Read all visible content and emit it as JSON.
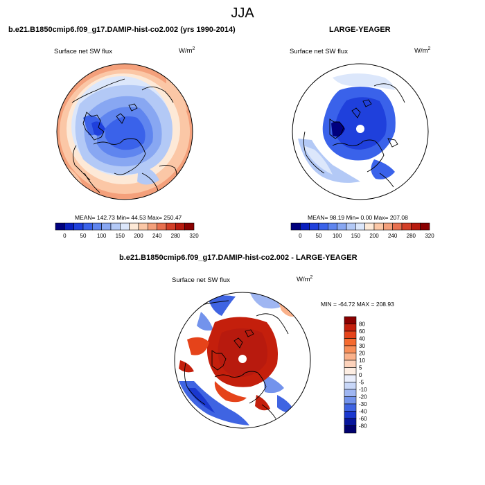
{
  "figure": {
    "title": "JJA"
  },
  "panels": [
    {
      "id": "model",
      "title": "b.e21.B1850cmip6.f09_g17.DAMIP-hist-co2.002 (yrs 1990-2014)",
      "left_label": "Surface net SW flux",
      "units_base": "W/m",
      "units_sup": "2",
      "stats": {
        "mean": "142.73",
        "min": "44.53",
        "max": "250.47"
      },
      "stats_text": "MEAN= 142.73  Min=  44.53  Max= 250.47"
    },
    {
      "id": "obs",
      "title": "LARGE-YEAGER",
      "left_label": "Surface net SW flux",
      "units_base": "W/m",
      "units_sup": "2",
      "stats": {
        "mean": "98.19",
        "min": "0.00",
        "max": "207.08"
      },
      "stats_text": "MEAN=  98.19  Min=   0.00  Max= 207.08"
    },
    {
      "id": "diff",
      "title": "b.e21.B1850cmip6.f09_g17.DAMIP-hist-co2.002 - LARGE-YEAGER",
      "left_label": "Surface net SW flux",
      "units_base": "W/m",
      "units_sup": "2",
      "stats": {
        "min": "-64.72",
        "max": "208.93"
      },
      "stats_text": "MIN = -64.72 MAX = 208.93"
    }
  ],
  "chart_data": [
    {
      "type": "heatmap",
      "title": "b.e21.B1850cmip6.f09_g17.DAMIP-hist-co2.002 (yrs 1990-2014)",
      "variable": "Surface net SW flux",
      "units": "W/m^2",
      "projection": "north polar stereographic",
      "mean": 142.73,
      "min": 44.53,
      "max": 250.47,
      "colorbar": {
        "orientation": "horizontal",
        "levels": [
          0,
          25,
          50,
          75,
          100,
          125,
          150,
          175,
          200,
          220,
          240,
          260,
          280,
          300,
          320
        ],
        "tick_labels": [
          "0",
          "50",
          "100",
          "150",
          "200",
          "240",
          "280",
          "320"
        ],
        "colors": [
          "#00007e",
          "#0a1fbf",
          "#1f40dc",
          "#3a62ea",
          "#5f85ef",
          "#88a7f2",
          "#b3c9f6",
          "#dce7fb",
          "#fde9d7",
          "#fbc7a6",
          "#f4a07b",
          "#e8704f",
          "#d33f27",
          "#b81a0e",
          "#8a0000"
        ]
      }
    },
    {
      "type": "heatmap",
      "title": "LARGE-YEAGER",
      "variable": "Surface net SW flux",
      "units": "W/m^2",
      "projection": "north polar stereographic",
      "mean": 98.19,
      "min": 0.0,
      "max": 207.08,
      "colorbar": {
        "orientation": "horizontal",
        "levels": [
          0,
          25,
          50,
          75,
          100,
          125,
          150,
          175,
          200,
          220,
          240,
          260,
          280,
          300,
          320
        ],
        "tick_labels": [
          "0",
          "50",
          "100",
          "150",
          "200",
          "240",
          "280",
          "320"
        ],
        "colors": [
          "#00007e",
          "#0a1fbf",
          "#1f40dc",
          "#3a62ea",
          "#5f85ef",
          "#88a7f2",
          "#b3c9f6",
          "#dce7fb",
          "#fde9d7",
          "#fbc7a6",
          "#f4a07b",
          "#e8704f",
          "#d33f27",
          "#b81a0e",
          "#8a0000"
        ]
      }
    },
    {
      "type": "heatmap",
      "title": "b.e21.B1850cmip6.f09_g17.DAMIP-hist-co2.002 - LARGE-YEAGER",
      "variable": "Surface net SW flux",
      "units": "W/m^2",
      "projection": "north polar stereographic",
      "min": -64.72,
      "max": 208.93,
      "colorbar": {
        "orientation": "vertical",
        "tick_labels": [
          "80",
          "60",
          "40",
          "30",
          "20",
          "10",
          "5",
          "0",
          "-5",
          "-10",
          "-20",
          "-30",
          "-40",
          "-60",
          "-80"
        ],
        "colors": [
          "#8a0000",
          "#c41f0c",
          "#e5431a",
          "#f56a2f",
          "#f88e58",
          "#fab18a",
          "#fcd2bb",
          "#fdeee3",
          "#e9eefc",
          "#c8d7f8",
          "#9fb6f2",
          "#7393ec",
          "#3f64e2",
          "#1a38cf",
          "#07159c",
          "#00006e"
        ]
      }
    }
  ]
}
